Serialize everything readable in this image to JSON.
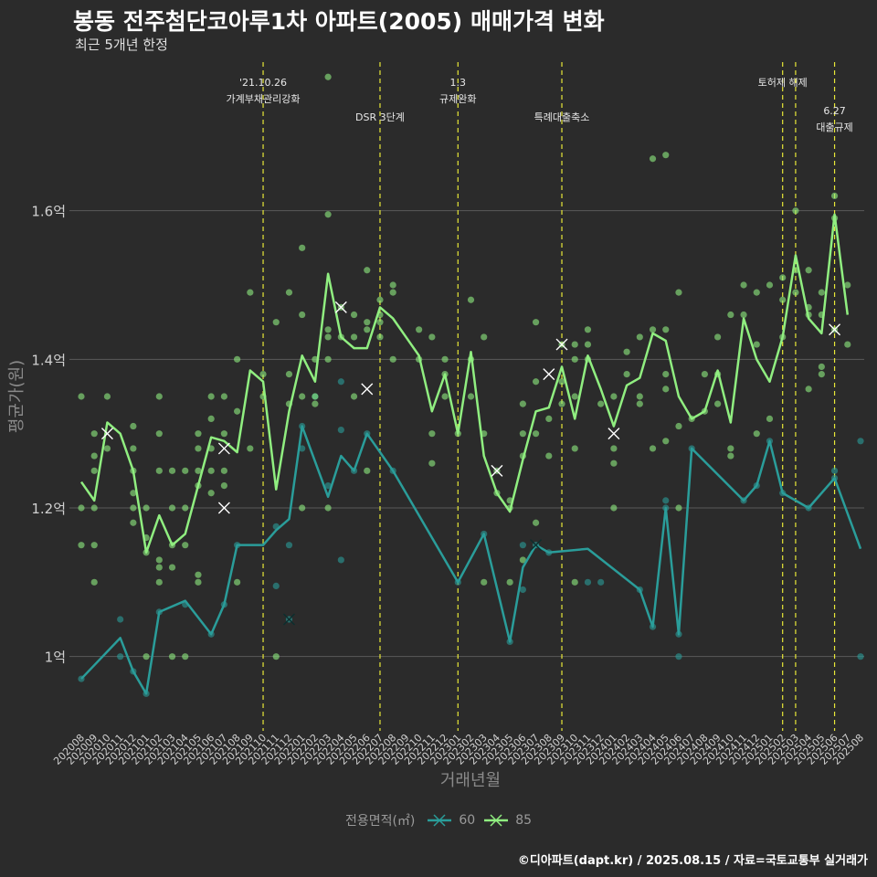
{
  "title": "봉동 전주첨단코아루1차 아파트(2005) 매매가격 변화",
  "subtitle": "최근 5개년 한정",
  "caption": "©디아파트(dapt.kr) / 2025.08.15 / 자료=국토교통부 실거래가",
  "colors": {
    "s60": "#2a9d9a",
    "s85": "#90ee80",
    "vline": "#e8e838",
    "grid": "#5a5a5a",
    "background": "#2b2b2b"
  },
  "chart_data": {
    "type": "line",
    "xlabel": "거래년월",
    "ylabel": "평균가(원)",
    "ylim": [
      0.9,
      1.8
    ],
    "yticks": [
      1.0,
      1.2,
      1.4,
      1.6
    ],
    "ytick_labels": [
      "1억",
      "1.2억",
      "1.4억",
      "1.6억"
    ],
    "legend": {
      "title": "전용면적(㎡)",
      "position": "bottom"
    },
    "categories": [
      "202008",
      "202009",
      "202010",
      "202011",
      "202012",
      "202101",
      "202102",
      "202103",
      "202104",
      "202105",
      "202106",
      "202107",
      "202108",
      "202109",
      "202110",
      "202111",
      "202112",
      "202201",
      "202202",
      "202203",
      "202204",
      "202205",
      "202206",
      "202207",
      "202208",
      "202209",
      "202210",
      "202211",
      "202212",
      "202301",
      "202302",
      "202303",
      "202304",
      "202305",
      "202306",
      "202307",
      "202308",
      "202309",
      "202310",
      "202311",
      "202312",
      "202401",
      "202402",
      "202403",
      "202404",
      "202405",
      "202406",
      "202407",
      "202408",
      "202409",
      "202410",
      "202411",
      "202412",
      "202501",
      "202502",
      "202503",
      "202504",
      "202505",
      "202506",
      "202507",
      "202508"
    ],
    "series": [
      {
        "name": "60",
        "values": [
          0.97,
          null,
          null,
          1.025,
          0.98,
          0.95,
          1.06,
          null,
          1.075,
          null,
          1.03,
          1.07,
          1.15,
          null,
          1.15,
          1.17,
          1.185,
          1.31,
          null,
          1.215,
          1.27,
          1.25,
          1.3,
          null,
          1.25,
          null,
          null,
          null,
          null,
          1.1,
          null,
          1.165,
          null,
          1.02,
          1.12,
          1.15,
          1.14,
          null,
          null,
          1.145,
          null,
          null,
          null,
          1.09,
          1.04,
          1.2,
          1.03,
          1.28,
          null,
          null,
          null,
          1.21,
          1.23,
          1.29,
          1.22,
          null,
          1.2,
          null,
          1.24,
          null,
          1.145
        ]
      },
      {
        "name": "85",
        "values": [
          1.235,
          1.21,
          1.315,
          1.3,
          1.25,
          1.14,
          1.19,
          1.15,
          1.165,
          1.23,
          1.295,
          1.29,
          1.275,
          1.385,
          1.37,
          1.225,
          1.33,
          1.405,
          1.37,
          1.515,
          1.43,
          1.415,
          1.415,
          1.47,
          1.455,
          1.43,
          1.405,
          1.33,
          1.38,
          1.3,
          1.41,
          1.27,
          1.22,
          1.195,
          1.265,
          1.33,
          1.335,
          1.39,
          1.32,
          1.405,
          1.36,
          1.31,
          1.365,
          1.375,
          1.435,
          1.425,
          1.35,
          1.32,
          1.33,
          1.385,
          1.315,
          1.455,
          1.4,
          1.37,
          1.43,
          1.54,
          1.455,
          1.435,
          1.595,
          1.46,
          null
        ]
      }
    ],
    "scatter_60": [
      [
        0,
        0.97
      ],
      [
        3,
        1.05
      ],
      [
        3,
        1.0
      ],
      [
        4,
        0.98
      ],
      [
        5,
        0.95
      ],
      [
        6,
        1.06
      ],
      [
        8,
        1.07
      ],
      [
        10,
        1.03
      ],
      [
        11,
        1.07
      ],
      [
        12,
        1.15
      ],
      [
        15,
        1.095
      ],
      [
        15,
        1.175
      ],
      [
        16,
        1.05
      ],
      [
        16,
        1.15
      ],
      [
        17,
        1.31
      ],
      [
        17,
        1.28
      ],
      [
        18,
        1.35
      ],
      [
        19,
        1.23
      ],
      [
        20,
        1.13
      ],
      [
        20,
        1.37
      ],
      [
        20,
        1.305
      ],
      [
        21,
        1.25
      ],
      [
        22,
        1.3
      ],
      [
        24,
        1.25
      ],
      [
        29,
        1.1
      ],
      [
        31,
        1.165
      ],
      [
        33,
        1.02
      ],
      [
        34,
        1.09
      ],
      [
        34,
        1.15
      ],
      [
        35,
        1.15
      ],
      [
        36,
        1.14
      ],
      [
        39,
        1.1
      ],
      [
        40,
        1.1
      ],
      [
        43,
        1.09
      ],
      [
        44,
        1.04
      ],
      [
        45,
        1.2
      ],
      [
        45,
        1.21
      ],
      [
        46,
        1.03
      ],
      [
        46,
        1.0
      ],
      [
        47,
        1.28
      ],
      [
        51,
        1.21
      ],
      [
        52,
        1.23
      ],
      [
        53,
        1.29
      ],
      [
        54,
        1.22
      ],
      [
        56,
        1.2
      ],
      [
        58,
        1.24
      ],
      [
        58,
        1.25
      ],
      [
        60,
        1.29
      ],
      [
        60,
        1.0
      ]
    ],
    "scatter_85": [
      [
        0,
        1.35
      ],
      [
        0,
        1.2
      ],
      [
        0,
        1.15
      ],
      [
        1,
        1.3
      ],
      [
        1,
        1.27
      ],
      [
        1,
        1.25
      ],
      [
        1,
        1.2
      ],
      [
        1,
        1.15
      ],
      [
        1,
        1.1
      ],
      [
        2,
        1.35
      ],
      [
        2,
        1.28
      ],
      [
        4,
        1.31
      ],
      [
        4,
        1.28
      ],
      [
        4,
        1.25
      ],
      [
        4,
        1.22
      ],
      [
        4,
        1.2
      ],
      [
        4,
        1.18
      ],
      [
        5,
        1.2
      ],
      [
        5,
        1.16
      ],
      [
        5,
        1.14
      ],
      [
        5,
        1.0
      ],
      [
        6,
        1.35
      ],
      [
        6,
        1.3
      ],
      [
        6,
        1.25
      ],
      [
        6,
        1.13
      ],
      [
        6,
        1.12
      ],
      [
        6,
        1.1
      ],
      [
        7,
        1.25
      ],
      [
        7,
        1.2
      ],
      [
        7,
        1.15
      ],
      [
        7,
        1.12
      ],
      [
        7,
        1.0
      ],
      [
        8,
        1.25
      ],
      [
        8,
        1.2
      ],
      [
        8,
        1.15
      ],
      [
        8,
        1.0
      ],
      [
        9,
        1.3
      ],
      [
        9,
        1.28
      ],
      [
        9,
        1.25
      ],
      [
        9,
        1.23
      ],
      [
        9,
        1.11
      ],
      [
        9,
        1.1
      ],
      [
        10,
        1.35
      ],
      [
        10,
        1.32
      ],
      [
        10,
        1.28
      ],
      [
        10,
        1.25
      ],
      [
        10,
        1.22
      ],
      [
        11,
        1.35
      ],
      [
        11,
        1.3
      ],
      [
        11,
        1.25
      ],
      [
        11,
        1.23
      ],
      [
        12,
        1.4
      ],
      [
        12,
        1.33
      ],
      [
        12,
        1.1
      ],
      [
        13,
        1.49
      ],
      [
        13,
        1.28
      ],
      [
        14,
        1.38
      ],
      [
        14,
        1.35
      ],
      [
        15,
        1.45
      ],
      [
        15,
        1.0
      ],
      [
        16,
        1.49
      ],
      [
        16,
        1.38
      ],
      [
        16,
        1.34
      ],
      [
        17,
        1.55
      ],
      [
        17,
        1.46
      ],
      [
        17,
        1.35
      ],
      [
        17,
        1.2
      ],
      [
        18,
        1.4
      ],
      [
        18,
        1.35
      ],
      [
        18,
        1.34
      ],
      [
        19,
        1.78
      ],
      [
        19,
        1.595
      ],
      [
        19,
        1.44
      ],
      [
        19,
        1.43
      ],
      [
        19,
        1.4
      ],
      [
        19,
        1.2
      ],
      [
        20,
        1.47
      ],
      [
        20,
        1.43
      ],
      [
        21,
        1.46
      ],
      [
        21,
        1.43
      ],
      [
        21,
        1.35
      ],
      [
        22,
        1.52
      ],
      [
        22,
        1.45
      ],
      [
        22,
        1.44
      ],
      [
        22,
        1.25
      ],
      [
        23,
        1.48
      ],
      [
        23,
        1.46
      ],
      [
        23,
        1.45
      ],
      [
        23,
        1.43
      ],
      [
        24,
        1.5
      ],
      [
        24,
        1.49
      ],
      [
        24,
        1.4
      ],
      [
        26,
        1.44
      ],
      [
        26,
        1.4
      ],
      [
        27,
        1.43
      ],
      [
        27,
        1.3
      ],
      [
        27,
        1.26
      ],
      [
        28,
        1.4
      ],
      [
        28,
        1.38
      ],
      [
        28,
        1.35
      ],
      [
        29,
        1.3
      ],
      [
        30,
        1.48
      ],
      [
        30,
        1.4
      ],
      [
        30,
        1.35
      ],
      [
        31,
        1.43
      ],
      [
        31,
        1.3
      ],
      [
        31,
        1.1
      ],
      [
        32,
        1.25
      ],
      [
        32,
        1.22
      ],
      [
        33,
        1.21
      ],
      [
        33,
        1.2
      ],
      [
        33,
        1.1
      ],
      [
        34,
        1.34
      ],
      [
        34,
        1.3
      ],
      [
        34,
        1.27
      ],
      [
        34,
        1.13
      ],
      [
        35,
        1.45
      ],
      [
        35,
        1.37
      ],
      [
        35,
        1.3
      ],
      [
        35,
        1.18
      ],
      [
        36,
        1.32
      ],
      [
        36,
        1.27
      ],
      [
        37,
        1.42
      ],
      [
        37,
        1.37
      ],
      [
        37,
        1.34
      ],
      [
        38,
        1.42
      ],
      [
        38,
        1.4
      ],
      [
        38,
        1.35
      ],
      [
        38,
        1.28
      ],
      [
        38,
        1.1
      ],
      [
        39,
        1.44
      ],
      [
        39,
        1.42
      ],
      [
        39,
        1.4
      ],
      [
        40,
        1.34
      ],
      [
        41,
        1.35
      ],
      [
        41,
        1.28
      ],
      [
        41,
        1.26
      ],
      [
        41,
        1.2
      ],
      [
        42,
        1.41
      ],
      [
        42,
        1.38
      ],
      [
        43,
        1.43
      ],
      [
        43,
        1.35
      ],
      [
        43,
        1.34
      ],
      [
        44,
        1.67
      ],
      [
        44,
        1.44
      ],
      [
        44,
        1.28
      ],
      [
        45,
        1.675
      ],
      [
        45,
        1.44
      ],
      [
        45,
        1.38
      ],
      [
        45,
        1.36
      ],
      [
        45,
        1.29
      ],
      [
        46,
        1.49
      ],
      [
        46,
        1.31
      ],
      [
        46,
        1.2
      ],
      [
        47,
        1.32
      ],
      [
        48,
        1.38
      ],
      [
        48,
        1.33
      ],
      [
        49,
        1.43
      ],
      [
        49,
        1.38
      ],
      [
        49,
        1.34
      ],
      [
        50,
        1.46
      ],
      [
        50,
        1.28
      ],
      [
        50,
        1.27
      ],
      [
        51,
        1.5
      ],
      [
        51,
        1.46
      ],
      [
        52,
        1.49
      ],
      [
        52,
        1.42
      ],
      [
        52,
        1.3
      ],
      [
        53,
        1.5
      ],
      [
        53,
        1.32
      ],
      [
        54,
        1.51
      ],
      [
        54,
        1.48
      ],
      [
        54,
        1.43
      ],
      [
        55,
        1.6
      ],
      [
        55,
        1.52
      ],
      [
        55,
        1.49
      ],
      [
        56,
        1.52
      ],
      [
        56,
        1.47
      ],
      [
        56,
        1.46
      ],
      [
        56,
        1.36
      ],
      [
        57,
        1.49
      ],
      [
        57,
        1.46
      ],
      [
        57,
        1.39
      ],
      [
        57,
        1.38
      ],
      [
        58,
        1.62
      ],
      [
        58,
        1.59
      ],
      [
        58,
        1.44
      ],
      [
        59,
        1.5
      ],
      [
        59,
        1.42
      ]
    ],
    "markers_60": [
      [
        16,
        1.05
      ],
      [
        35,
        1.15
      ]
    ],
    "markers_85": [
      [
        2,
        1.3
      ],
      [
        11,
        1.28
      ],
      [
        11,
        1.2
      ],
      [
        20,
        1.47
      ],
      [
        22,
        1.36
      ],
      [
        32,
        1.25
      ],
      [
        36,
        1.38
      ],
      [
        37,
        1.42
      ],
      [
        41,
        1.3
      ],
      [
        58,
        1.44
      ]
    ],
    "events": [
      {
        "index": 14.0,
        "lines": [
          "'21.10.26",
          "가계부채관리강화"
        ],
        "row": 0
      },
      {
        "index": 23.0,
        "lines": [
          "DSR 3단계"
        ],
        "row": 1
      },
      {
        "index": 29.0,
        "lines": [
          "1.3",
          "규제완화"
        ],
        "row": 0
      },
      {
        "index": 37.0,
        "lines": [
          "특례대출축소"
        ],
        "row": 1
      },
      {
        "index": 54.0,
        "lines": [
          "토허제 해제"
        ],
        "row": 0
      },
      {
        "index": 55.0,
        "lines": [],
        "row": 0
      },
      {
        "index": 58.0,
        "lines": [
          "6.27",
          "대출규제"
        ],
        "row": 2
      }
    ]
  }
}
